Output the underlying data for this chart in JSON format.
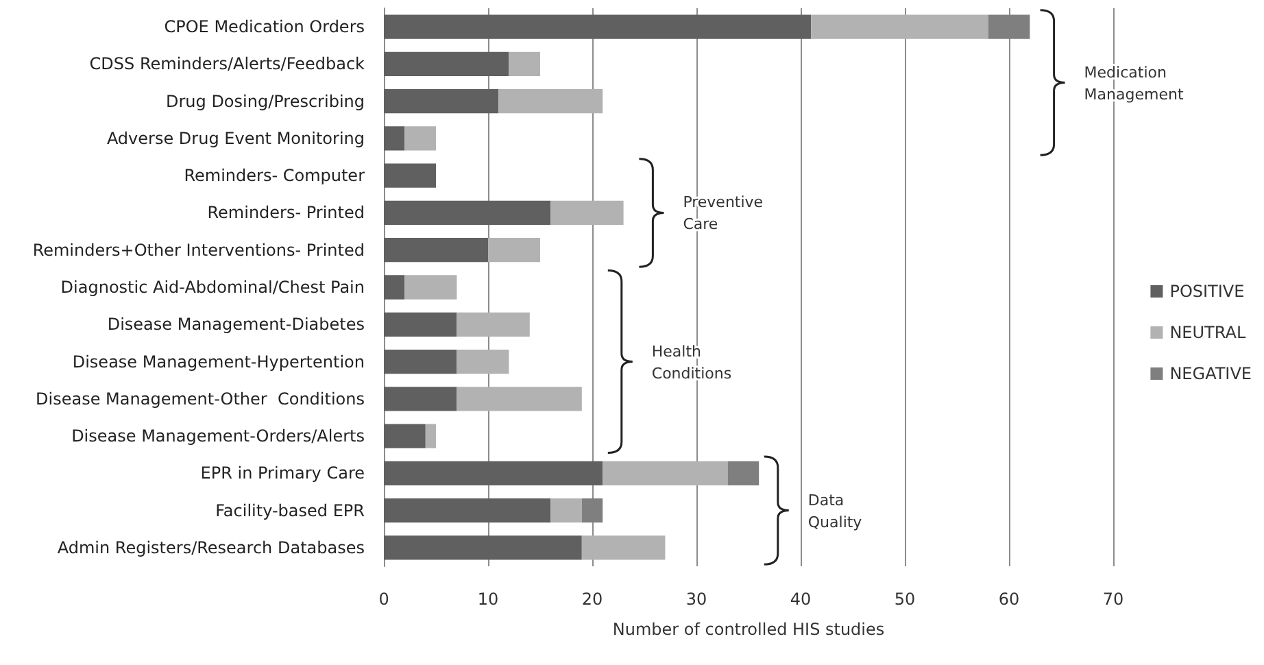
{
  "chart_data": {
    "type": "bar",
    "orientation": "horizontal",
    "stacked": true,
    "categories": [
      "CPOE Medication Orders",
      "CDSS Reminders/Alerts/Feedback",
      "Drug Dosing/Prescribing",
      "Adverse Drug Event Monitoring",
      "Reminders- Computer",
      "Reminders- Printed",
      "Reminders+Other Interventions- Printed",
      "Diagnostic Aid-Abdominal/Chest Pain",
      "Disease Management-Diabetes",
      "Disease Management-Hypertention",
      "Disease Management-Other  Conditions",
      "Disease Management-Orders/Alerts",
      "EPR in Primary Care",
      "Facility-based EPR",
      "Admin Registers/Research Databases"
    ],
    "series": [
      {
        "name": "POSITIVE",
        "color": "#606060",
        "values": [
          41,
          12,
          11,
          2,
          5,
          16,
          10,
          2,
          7,
          7,
          7,
          4,
          21,
          16,
          19
        ]
      },
      {
        "name": "NEUTRAL",
        "color": "#b2b2b2",
        "values": [
          17,
          3,
          10,
          3,
          0,
          7,
          5,
          5,
          7,
          5,
          12,
          1,
          12,
          3,
          8
        ]
      },
      {
        "name": "NEGATIVE",
        "color": "#7f7f7f",
        "values": [
          4,
          0,
          0,
          0,
          0,
          0,
          0,
          0,
          0,
          0,
          0,
          0,
          3,
          2,
          0
        ]
      }
    ],
    "xlabel": "Number of controlled HIS studies",
    "xlim": [
      0,
      70
    ],
    "xticks": [
      0,
      10,
      20,
      30,
      40,
      50,
      60,
      70
    ],
    "grid": "x",
    "legend": "right",
    "annotations": [
      "Medication\nManagement",
      "Preventive\nCare",
      "Health\nConditions",
      "Data\nQuality"
    ]
  }
}
